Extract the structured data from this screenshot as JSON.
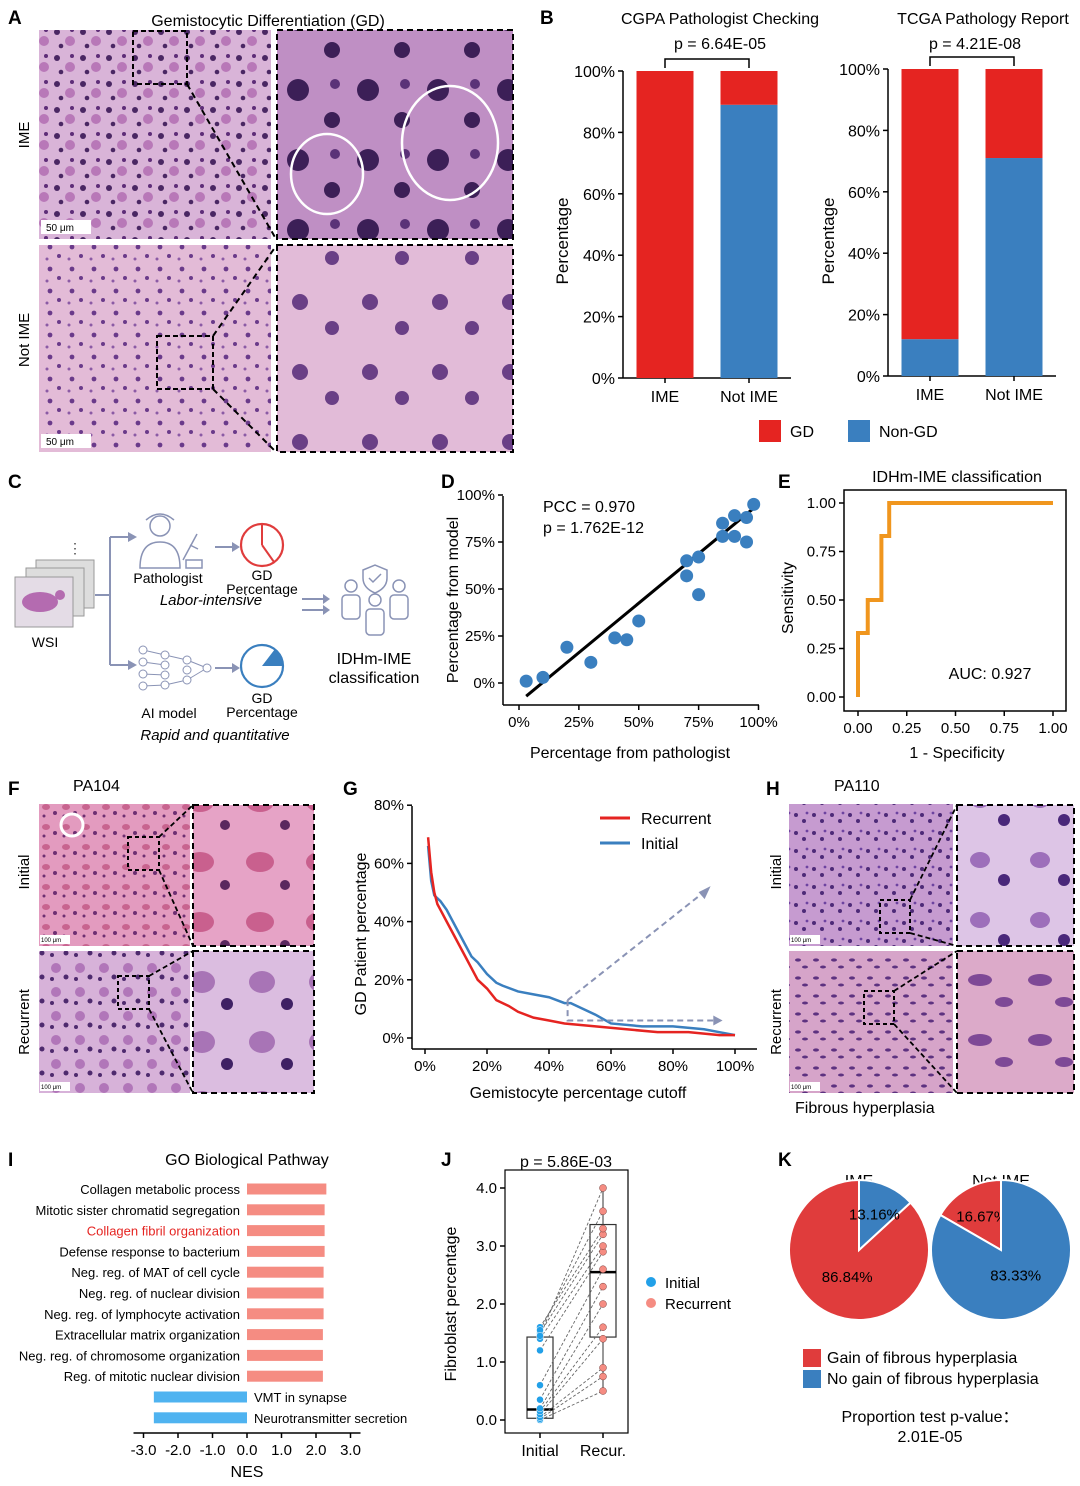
{
  "colors": {
    "gd_red": "#e52421",
    "nongd_blue": "#3a7fbf",
    "accent_orange": "#f0961e",
    "light_blue": "#4fb3f0",
    "salmon": "#f58c82",
    "dash_grey": "#8a93b5"
  },
  "panel_labels": [
    "A",
    "B",
    "C",
    "D",
    "E",
    "F",
    "G",
    "H",
    "I",
    "J",
    "K"
  ],
  "panelA": {
    "title": "Gemistocytic Differentiation (GD)",
    "row_labels": [
      "IME",
      "Not IME"
    ],
    "scale_bar": "50 μm"
  },
  "chart_data": [
    {
      "id": "B1",
      "type": "bar",
      "stacked": true,
      "title": "CGPA Pathologist Checking",
      "pvalue": "p = 6.64E-05",
      "categories": [
        "IME",
        "Not IME"
      ],
      "series": [
        {
          "name": "Non-GD",
          "values": [
            0,
            89
          ]
        },
        {
          "name": "GD",
          "values": [
            100,
            11
          ]
        }
      ],
      "ylabel": "Percentage",
      "ylim": [
        0,
        100
      ],
      "yticks": [
        "0%",
        "20%",
        "40%",
        "60%",
        "80%",
        "100%"
      ]
    },
    {
      "id": "B2",
      "type": "bar",
      "stacked": true,
      "title": "TCGA Pathology Report",
      "pvalue": "p = 4.21E-08",
      "categories": [
        "IME",
        "Not IME"
      ],
      "series": [
        {
          "name": "Non-GD",
          "values": [
            12,
            71
          ]
        },
        {
          "name": "GD",
          "values": [
            88,
            29
          ]
        }
      ],
      "ylabel": "Percentage",
      "ylim": [
        0,
        100
      ],
      "yticks": [
        "0%",
        "20%",
        "40%",
        "60%",
        "80%",
        "100%"
      ],
      "legend": [
        "GD",
        "Non-GD"
      ]
    },
    {
      "id": "D",
      "type": "scatter",
      "xlabel": "Percentage from pathologist",
      "ylabel": "Percentage from model",
      "xlim": [
        0,
        100
      ],
      "ylim": [
        0,
        100
      ],
      "xticks": [
        "0%",
        "25%",
        "50%",
        "75%",
        "100%"
      ],
      "yticks": [
        "0%",
        "25%",
        "50%",
        "75%",
        "100%"
      ],
      "pcc": "PCC = 0.970",
      "pvalue": "p = 1.762E-12",
      "x": [
        3,
        10,
        20,
        30,
        40,
        45,
        50,
        70,
        70,
        75,
        75,
        85,
        85,
        90,
        90,
        95,
        95,
        98
      ],
      "y": [
        1,
        3,
        19,
        11,
        24,
        23,
        33,
        57,
        65,
        47,
        67,
        78,
        85,
        78,
        89,
        75,
        88,
        95
      ],
      "fit": [
        [
          3,
          -7
        ],
        [
          98,
          93
        ]
      ]
    },
    {
      "id": "E",
      "type": "line",
      "title": "IDHm-IME classification",
      "xlabel": "1 - Specificity",
      "ylabel": "Sensitivity",
      "xlim": [
        0,
        1
      ],
      "ylim": [
        0,
        1
      ],
      "xticks": [
        "0.00",
        "0.25",
        "0.50",
        "0.75",
        "1.00"
      ],
      "yticks": [
        "0.00",
        "0.25",
        "0.50",
        "0.75",
        "1.00"
      ],
      "auc": "AUC: 0.927",
      "x": [
        0,
        0,
        0.05,
        0.05,
        0.12,
        0.12,
        0.16,
        0.16,
        1
      ],
      "y": [
        0,
        0.33,
        0.33,
        0.5,
        0.5,
        0.83,
        0.83,
        1,
        1
      ]
    },
    {
      "id": "G",
      "type": "line",
      "xlabel": "Gemistocyte percentage cutoff",
      "ylabel": "GD Patient percentage",
      "xlim": [
        0,
        100
      ],
      "ylim": [
        0,
        80
      ],
      "xticks": [
        "0%",
        "20%",
        "40%",
        "60%",
        "80%",
        "100%"
      ],
      "yticks": [
        "0%",
        "20%",
        "40%",
        "60%",
        "80%"
      ],
      "series": [
        {
          "name": "Recurrent",
          "x": [
            1,
            2,
            3,
            4,
            5,
            7,
            9,
            11,
            13,
            15,
            17,
            20,
            23,
            27,
            30,
            35,
            40,
            45,
            55,
            65,
            75,
            85,
            95,
            100
          ],
          "y": [
            69,
            57,
            50,
            46,
            44,
            40,
            36,
            32,
            28,
            24,
            20,
            17,
            13,
            11,
            9,
            7,
            6,
            5,
            4,
            3,
            2,
            2,
            1,
            1
          ]
        },
        {
          "name": "Initial",
          "x": [
            1,
            2,
            3,
            4,
            5,
            7,
            9,
            11,
            13,
            15,
            17,
            20,
            23,
            25,
            30,
            35,
            40,
            45,
            47,
            55,
            60,
            70,
            80,
            90,
            95,
            100
          ],
          "y": [
            66,
            54,
            49,
            48,
            47,
            44,
            40,
            36,
            32,
            28,
            26,
            22,
            19,
            18,
            16,
            15,
            14,
            12,
            12,
            8,
            5,
            4,
            4,
            3,
            2,
            1
          ]
        }
      ]
    },
    {
      "id": "I",
      "type": "bar",
      "orientation": "horizontal",
      "title": "GO Biological Pathway",
      "xlabel": "NES",
      "xlim": [
        -3,
        3
      ],
      "xticks": [
        "-3.0",
        "-2.0",
        "-1.0",
        "0.0",
        "1.0",
        "2.0",
        "3.0"
      ],
      "categories": [
        "Collagen metabolic process",
        "Mitotic sister chromatid segregation",
        "Collagen fibril organization",
        "Defense response to bacterium",
        "Neg. reg. of MAT of cell cycle",
        "Neg. reg. of nuclear division",
        "Neg. reg. of lymphocyte activation",
        "Extracellular matrix organization",
        "Neg. reg. of chromosome organization",
        "Reg. of mitotic nuclear division",
        "VMT in synapse",
        "Neurotransmitter secretion"
      ],
      "values": [
        2.3,
        2.25,
        2.25,
        2.25,
        2.22,
        2.22,
        2.22,
        2.2,
        2.2,
        2.2,
        -2.7,
        -2.7
      ],
      "highlight": "Collagen fibril organization"
    },
    {
      "id": "J",
      "type": "box",
      "pvalue": "p = 5.86E-03",
      "categories": [
        "Initial",
        "Recur."
      ],
      "ylabel": "Fibroblast percentage",
      "ylim": [
        0,
        4
      ],
      "yticks": [
        "0.0",
        "1.0",
        "2.0",
        "3.0",
        "4.0"
      ],
      "boxes": [
        {
          "q1": 0.03,
          "median": 0.18,
          "q3": 1.43,
          "min": 0.0,
          "max": 1.62
        },
        {
          "q1": 1.43,
          "median": 2.55,
          "q3": 3.37,
          "min": 0.5,
          "max": 4.0
        }
      ],
      "pairs": [
        [
          0.0,
          0.5
        ],
        [
          0.02,
          0.75
        ],
        [
          0.05,
          0.9
        ],
        [
          0.1,
          1.4
        ],
        [
          0.15,
          1.6
        ],
        [
          0.2,
          2.0
        ],
        [
          0.35,
          2.3
        ],
        [
          0.6,
          2.6
        ],
        [
          1.2,
          2.9
        ],
        [
          1.4,
          3.0
        ],
        [
          1.5,
          3.2
        ],
        [
          1.6,
          3.3
        ],
        [
          1.55,
          3.6
        ],
        [
          1.45,
          4.0
        ]
      ],
      "legend": [
        "Initial",
        "Recurrent"
      ]
    },
    {
      "id": "K",
      "type": "pie",
      "pies": [
        {
          "title": "IME",
          "values": [
            86.84,
            13.16
          ],
          "labels": [
            "86.84%",
            "13.16%"
          ]
        },
        {
          "title": "Not IME",
          "values": [
            16.67,
            83.33
          ],
          "labels": [
            "16.67%",
            "83.33%"
          ]
        }
      ],
      "legend": [
        "Gain of fibrous hyperplasia",
        "No gain of fibrous hyperplasia"
      ],
      "test_label": "Proportion test p-value：",
      "test_value": "2.01E-05"
    }
  ],
  "panelC": {
    "wsi_label": "WSI",
    "pathologist_label": "Pathologist",
    "labor": "Labor-intensive",
    "ai_label": "AI model",
    "rapid": "Rapid and quantitative",
    "gd_label": "GD",
    "percentage_label": "Percentage",
    "classification_line1": "IDHm-IME",
    "classification_line2": "classification"
  },
  "panelF": {
    "sample": "PA104",
    "rows": [
      "Initial",
      "Recurrent"
    ],
    "scale": "100 μm"
  },
  "panelH": {
    "sample": "PA110",
    "rows": [
      "Initial",
      "Recurrent"
    ],
    "scale": "100 μm",
    "caption": "Fibrous hyperplasia"
  }
}
